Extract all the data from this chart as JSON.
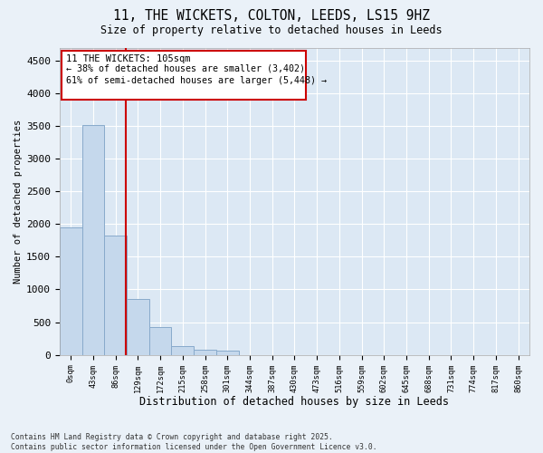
{
  "title": "11, THE WICKETS, COLTON, LEEDS, LS15 9HZ",
  "subtitle": "Size of property relative to detached houses in Leeds",
  "xlabel": "Distribution of detached houses by size in Leeds",
  "ylabel": "Number of detached properties",
  "bar_values": [
    1950,
    3520,
    1820,
    850,
    430,
    130,
    80,
    60,
    0,
    0,
    0,
    0,
    0,
    0,
    0,
    0,
    0,
    0,
    0,
    0,
    0
  ],
  "bar_labels": [
    "0sqm",
    "43sqm",
    "86sqm",
    "129sqm",
    "172sqm",
    "215sqm",
    "258sqm",
    "301sqm",
    "344sqm",
    "387sqm",
    "430sqm",
    "473sqm",
    "516sqm",
    "559sqm",
    "602sqm",
    "645sqm",
    "688sqm",
    "731sqm",
    "774sqm",
    "817sqm",
    "860sqm"
  ],
  "bar_color": "#c5d8ec",
  "bar_edge_color": "#88aacb",
  "bg_color": "#eaf1f8",
  "plot_bg_color": "#dce8f4",
  "grid_color": "#ffffff",
  "vline_color": "#cc0000",
  "annotation_title": "11 THE WICKETS: 105sqm",
  "annotation_line1": "← 38% of detached houses are smaller (3,402)",
  "annotation_line2": "61% of semi-detached houses are larger (5,448) →",
  "annotation_box_color": "#ffffff",
  "annotation_border_color": "#cc0000",
  "ylim": [
    0,
    4700
  ],
  "yticks": [
    0,
    500,
    1000,
    1500,
    2000,
    2500,
    3000,
    3500,
    4000,
    4500
  ],
  "footer_line1": "Contains HM Land Registry data © Crown copyright and database right 2025.",
  "footer_line2": "Contains public sector information licensed under the Open Government Licence v3.0."
}
